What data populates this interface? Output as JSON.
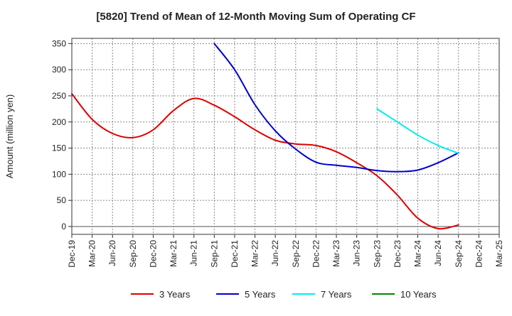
{
  "chart_data": {
    "type": "line",
    "title": "[5820]  Trend of Mean of 12-Month Moving Sum of Operating CF",
    "xlabel": "",
    "ylabel": "Amount (million yen)",
    "ylim": [
      -15,
      360
    ],
    "yticks": [
      0,
      50,
      100,
      150,
      200,
      250,
      300,
      350
    ],
    "ytick_labels": [
      "0",
      "50",
      "100",
      "150",
      "200",
      "250",
      "300",
      "350"
    ],
    "grid": true,
    "legend_position": "bottom",
    "categories": [
      "Dec-19",
      "Mar-20",
      "Jun-20",
      "Sep-20",
      "Dec-20",
      "Mar-21",
      "Jun-21",
      "Sep-21",
      "Dec-21",
      "Mar-22",
      "Jun-22",
      "Sep-22",
      "Dec-22",
      "Mar-23",
      "Jun-23",
      "Sep-23",
      "Dec-23",
      "Mar-24",
      "Jun-24",
      "Sep-24",
      "Dec-24",
      "Mar-25"
    ],
    "series": [
      {
        "name": "3 Years",
        "color": "#dd0000",
        "values": [
          254,
          205,
          178,
          170,
          185,
          222,
          245,
          232,
          210,
          185,
          165,
          158,
          155,
          143,
          122,
          97,
          60,
          16,
          -4,
          3,
          null,
          null
        ]
      },
      {
        "name": "5 Years",
        "color": "#0000cc",
        "values": [
          null,
          null,
          null,
          null,
          null,
          null,
          null,
          350,
          300,
          233,
          183,
          148,
          123,
          117,
          113,
          107,
          105,
          108,
          122,
          141,
          null,
          null
        ]
      },
      {
        "name": "7 Years",
        "color": "#00eeee",
        "values": [
          null,
          null,
          null,
          null,
          null,
          null,
          null,
          null,
          null,
          null,
          null,
          null,
          null,
          null,
          null,
          225,
          200,
          175,
          155,
          140,
          null,
          null
        ]
      },
      {
        "name": "10 Years",
        "color": "#008800",
        "values": [
          null,
          null,
          null,
          null,
          null,
          null,
          null,
          null,
          null,
          null,
          null,
          null,
          null,
          null,
          null,
          null,
          null,
          null,
          null,
          null,
          null,
          null
        ]
      }
    ]
  }
}
